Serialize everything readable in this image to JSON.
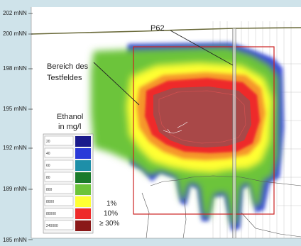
{
  "y_axis": {
    "labels": [
      "202 mNN",
      "200 mNN",
      "198 mNN",
      "195 mNN",
      "192 mNN",
      "189 mNN",
      "185 mNN"
    ]
  },
  "x_axis": {
    "labels": [
      "",
      "",
      "",
      "",
      "",
      "",
      "",
      ""
    ]
  },
  "annotations": {
    "well": "P62",
    "area_line1": "Bereich des",
    "area_line2": "Testfeldes"
  },
  "legend": {
    "title_line1": "Ethanol",
    "title_line2": "in mg/l",
    "entries": [
      {
        "label": "20",
        "color": "#1a1a8c"
      },
      {
        "label": "40",
        "color": "#2a3ad8"
      },
      {
        "label": "60",
        "color": "#1e8fa8"
      },
      {
        "label": "80",
        "color": "#1a7a2a"
      },
      {
        "label": "800",
        "color": "#6cc43a"
      },
      {
        "label": "8000",
        "color": "#ffff33"
      },
      {
        "label": "80000",
        "color": "#ee2a2a"
      },
      {
        "label": "240000",
        "color": "#8a1818"
      }
    ],
    "percent_1": "1%",
    "percent_10": "10%",
    "percent_30": "≥ 30%"
  },
  "colors": {
    "background": "#cfe3ea",
    "panel": "#ffffff",
    "testfield_border": "#cc2222"
  }
}
